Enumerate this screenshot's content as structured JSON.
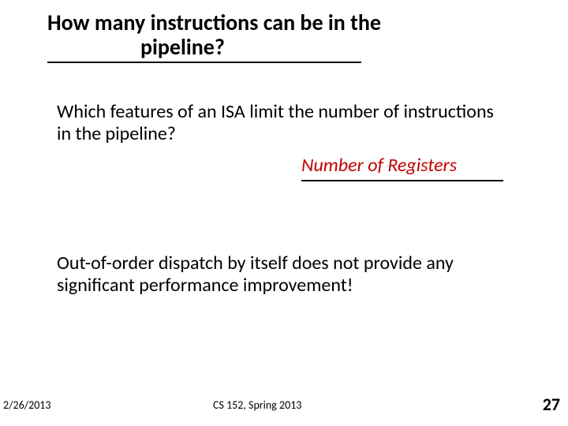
{
  "title": {
    "line1": "How many instructions can be in the",
    "line2": "pipeline?"
  },
  "body": {
    "question": "Which features of an ISA limit the number of instructions in the pipeline?",
    "answer": "Number of Registers",
    "statement": "Out-of-order dispatch by itself does not provide any significant performance improvement!"
  },
  "footer": {
    "date": "2/26/2013",
    "course": "CS 152, Spring 2013",
    "pagenum": "27"
  },
  "style": {
    "answer_color": "#c00000",
    "title_fontsize": 28,
    "body_fontsize": 24,
    "footer_fontsize": 14,
    "pagenum_fontsize": 22,
    "background_color": "#ffffff",
    "text_color": "#000000"
  }
}
